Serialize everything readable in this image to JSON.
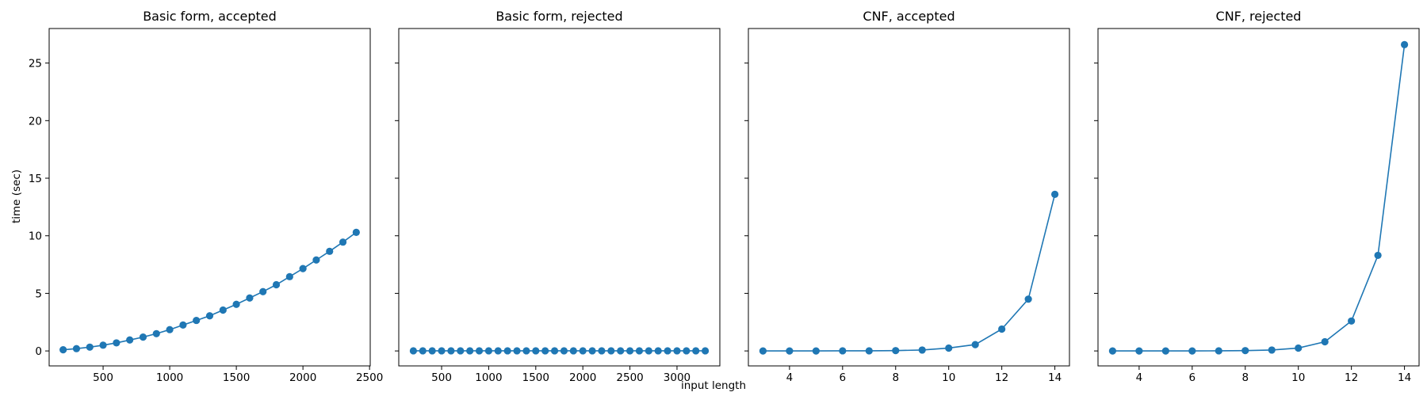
{
  "figure": {
    "ylabel": "time (sec)",
    "xlabel": "input length",
    "line_color": "#1f77b4"
  },
  "chart_data": [
    {
      "type": "line",
      "title": "Basic form, accepted",
      "xlim": [
        95,
        2505
      ],
      "ylim": [
        -1.3,
        28
      ],
      "xticks": [
        500,
        1000,
        1500,
        2000,
        2500
      ],
      "yticks": [
        0,
        5,
        10,
        15,
        20,
        25
      ],
      "show_ytick_labels": true,
      "grid": false,
      "series": [
        {
          "x": [
            200,
            300,
            400,
            500,
            600,
            700,
            800,
            900,
            1000,
            1100,
            1200,
            1300,
            1400,
            1500,
            1600,
            1700,
            1800,
            1900,
            2000,
            2100,
            2200,
            2300,
            2400
          ],
          "y": [
            0.1,
            0.2,
            0.33,
            0.5,
            0.7,
            0.95,
            1.2,
            1.5,
            1.85,
            2.25,
            2.65,
            3.05,
            3.55,
            4.05,
            4.6,
            5.15,
            5.75,
            6.45,
            7.15,
            7.9,
            8.65,
            9.45,
            10.3
          ]
        }
      ]
    },
    {
      "type": "line",
      "title": "Basic form, rejected",
      "xlim": [
        45,
        3455
      ],
      "ylim": [
        -1.3,
        28
      ],
      "xticks": [
        500,
        1000,
        1500,
        2000,
        2500,
        3000
      ],
      "yticks": [
        0,
        5,
        10,
        15,
        20,
        25
      ],
      "show_ytick_labels": false,
      "grid": false,
      "series": [
        {
          "x": [
            200,
            300,
            400,
            500,
            600,
            700,
            800,
            900,
            1000,
            1100,
            1200,
            1300,
            1400,
            1500,
            1600,
            1700,
            1800,
            1900,
            2000,
            2100,
            2200,
            2300,
            2400,
            2500,
            2600,
            2700,
            2800,
            2900,
            3000,
            3100,
            3200,
            3300
          ],
          "y": [
            0.01,
            0.01,
            0.01,
            0.01,
            0.01,
            0.01,
            0.01,
            0.01,
            0.01,
            0.01,
            0.01,
            0.01,
            0.01,
            0.01,
            0.01,
            0.01,
            0.01,
            0.01,
            0.01,
            0.01,
            0.01,
            0.01,
            0.01,
            0.01,
            0.01,
            0.01,
            0.01,
            0.01,
            0.01,
            0.01,
            0.01,
            0.01
          ]
        }
      ]
    },
    {
      "type": "line",
      "title": "CNF, accepted",
      "xlim": [
        2.45,
        14.55
      ],
      "ylim": [
        -1.3,
        28
      ],
      "xticks": [
        4,
        6,
        8,
        10,
        12,
        14
      ],
      "yticks": [
        0,
        5,
        10,
        15,
        20,
        25
      ],
      "show_ytick_labels": false,
      "grid": false,
      "series": [
        {
          "x": [
            3,
            4,
            5,
            6,
            7,
            8,
            9,
            10,
            11,
            12,
            13,
            14
          ],
          "y": [
            0.0,
            0.0,
            0.0,
            0.01,
            0.01,
            0.03,
            0.08,
            0.25,
            0.55,
            1.9,
            4.5,
            13.6
          ]
        }
      ]
    },
    {
      "type": "line",
      "title": "CNF, rejected",
      "xlim": [
        2.45,
        14.55
      ],
      "ylim": [
        -1.3,
        28
      ],
      "xticks": [
        4,
        6,
        8,
        10,
        12,
        14
      ],
      "yticks": [
        0,
        5,
        10,
        15,
        20,
        25
      ],
      "show_ytick_labels": false,
      "grid": false,
      "series": [
        {
          "x": [
            3,
            4,
            5,
            6,
            7,
            8,
            9,
            10,
            11,
            12,
            13,
            14
          ],
          "y": [
            0.0,
            0.0,
            0.0,
            0.0,
            0.01,
            0.03,
            0.08,
            0.25,
            0.8,
            2.6,
            8.3,
            26.6
          ]
        }
      ]
    }
  ]
}
